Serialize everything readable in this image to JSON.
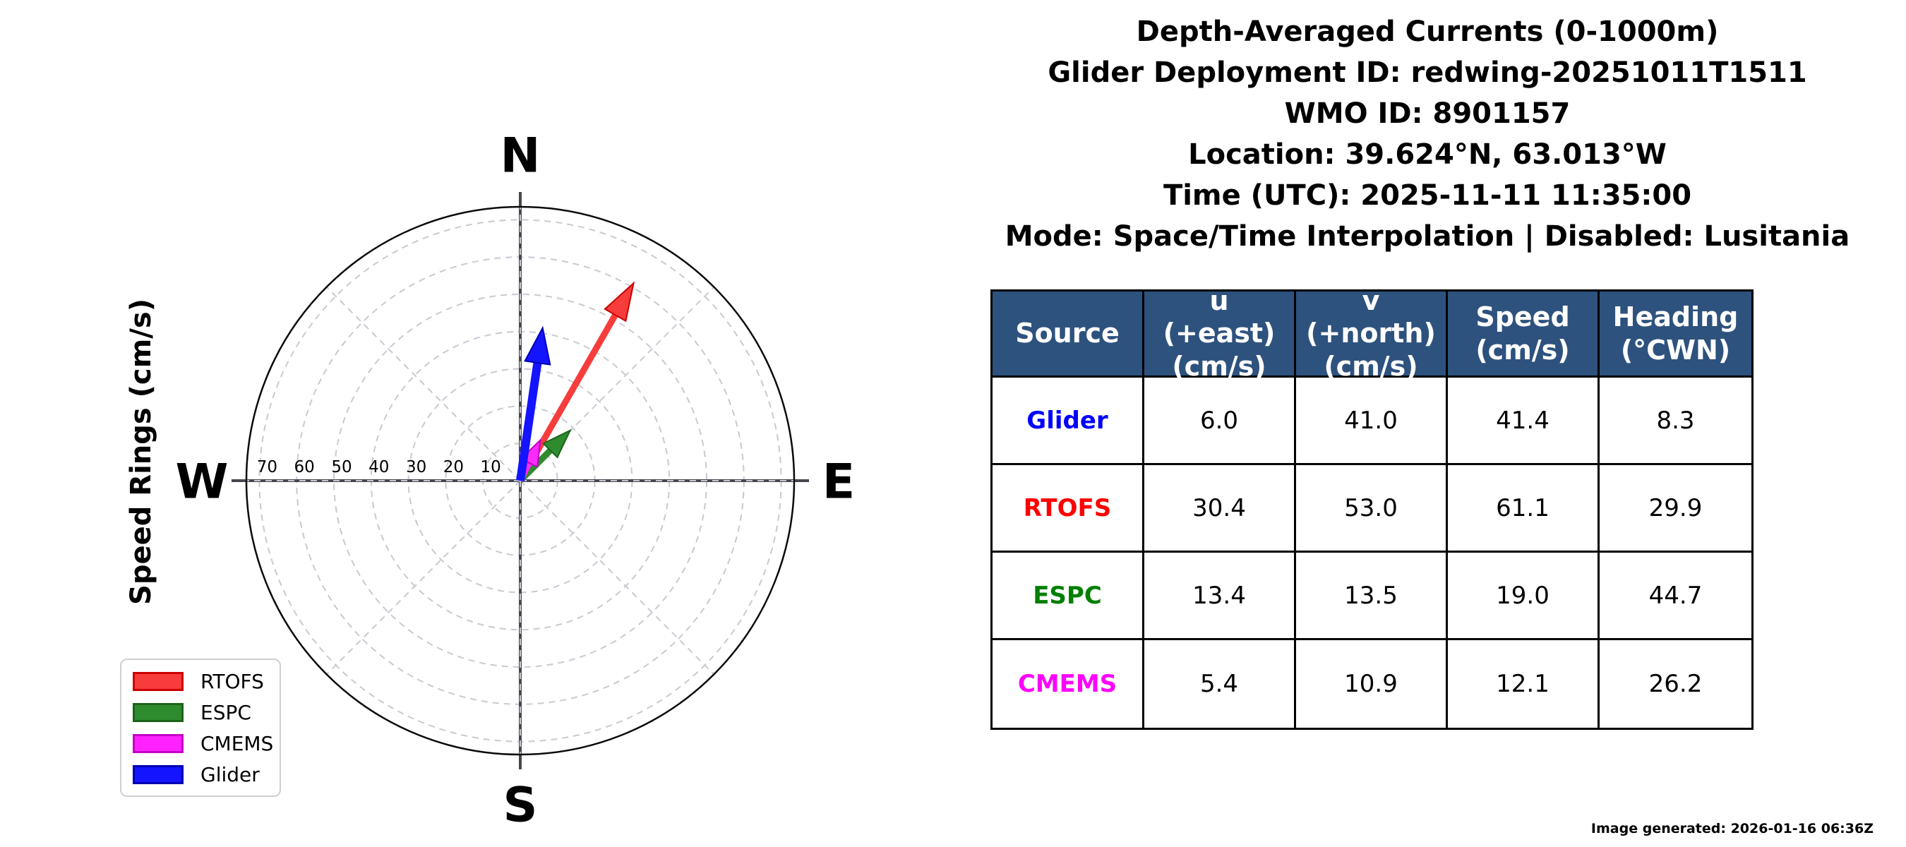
{
  "title_block": {
    "lines": [
      "Depth-Averaged Currents (0-1000m)",
      "Glider Deployment ID: redwing-20251011T1511",
      "WMO ID: 8901157",
      "Location: 39.624°N, 63.013°W",
      "Time (UTC): 2025-11-11 11:35:00",
      "Mode: Space/Time Interpolation | Disabled: Lusitania"
    ]
  },
  "compass": {
    "axis_label": "Speed Rings (cm/s)",
    "cardinals": {
      "north": "N",
      "east": "E",
      "south": "S",
      "west": "W"
    },
    "ring_values": [
      10,
      20,
      30,
      40,
      50,
      60,
      70
    ],
    "ring_units": "cm/s"
  },
  "chart_data": {
    "type": "quiver-compass",
    "title": "Depth-Averaged Currents (0-1000m)",
    "orientation": "N up, E right, heading degrees clockwise from north",
    "ring_values": [
      10,
      20,
      30,
      40,
      50,
      60,
      70
    ],
    "ring_units": "cm/s",
    "outer_limit": 73.3,
    "grid": "dashed rings every 10 cm/s with dashed 45-degree spokes",
    "legend_position": "lower left",
    "series": [
      {
        "name": "RTOFS",
        "u": 30.4,
        "v": 53.0,
        "speed": 61.1,
        "heading_cwn": 29.9,
        "color": "#f73c3c",
        "edge": "#c80000"
      },
      {
        "name": "ESPC",
        "u": 13.4,
        "v": 13.5,
        "speed": 19.0,
        "heading_cwn": 44.7,
        "color": "#2e8b2e",
        "edge": "#1c641c"
      },
      {
        "name": "CMEMS",
        "u": 5.4,
        "v": 10.9,
        "speed": 12.1,
        "heading_cwn": 26.2,
        "color": "#fb2bfb",
        "edge": "#c400c4"
      },
      {
        "name": "Glider",
        "u": 6.0,
        "v": 41.0,
        "speed": 41.4,
        "heading_cwn": 8.3,
        "color": "#1414ff",
        "edge": "#0000b4"
      }
    ]
  },
  "legend": {
    "items": [
      {
        "label": "RTOFS",
        "color": "#f83b3b",
        "edge": "#cc0000"
      },
      {
        "label": "ESPC",
        "color": "#2e8b2e",
        "edge": "#1c641c"
      },
      {
        "label": "CMEMS",
        "color": "#ff22ff",
        "edge": "#c400c4"
      },
      {
        "label": "Glider",
        "color": "#1414ff",
        "edge": "#0000b4"
      }
    ]
  },
  "table": {
    "headers": [
      "Source",
      "u\n(+east)\n(cm/s)",
      "v\n(+north)\n(cm/s)",
      "Speed\n(cm/s)",
      "Heading\n(°CWN)"
    ],
    "rows": [
      {
        "source": "Glider",
        "color": "#0000ff",
        "u": "6.0",
        "v": "41.0",
        "speed": "41.4",
        "heading": "8.3"
      },
      {
        "source": "RTOFS",
        "color": "#ff0000",
        "u": "30.4",
        "v": "53.0",
        "speed": "61.1",
        "heading": "29.9"
      },
      {
        "source": "ESPC",
        "color": "#007f00",
        "u": "13.4",
        "v": "13.5",
        "speed": "19.0",
        "heading": "44.7"
      },
      {
        "source": "CMEMS",
        "color": "#ff00ff",
        "u": "5.4",
        "v": "10.9",
        "speed": "12.1",
        "heading": "26.2"
      }
    ]
  },
  "footer": {
    "generated": "Image generated: 2026-01-16 06:36Z"
  },
  "colors": {
    "table_header_bg": "#2e527e",
    "grid_dash": "#c8cad2",
    "axis_cross": "#47474f",
    "outer_circle": "#0a0a0a"
  }
}
